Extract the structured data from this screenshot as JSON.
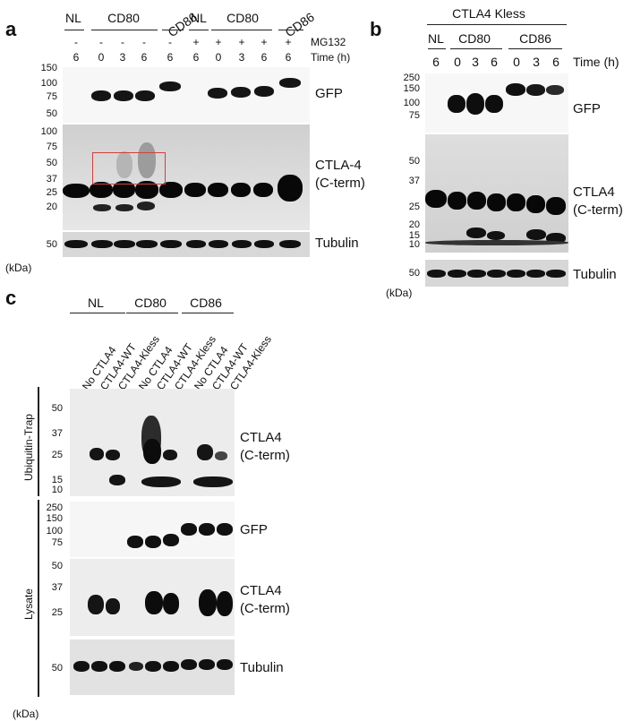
{
  "panel_a": {
    "letter": "a",
    "groups": [
      "NL",
      "CD80",
      "CD86",
      "NL",
      "CD80",
      "CD86"
    ],
    "mg132_row": [
      "-",
      "-",
      "-",
      "-",
      "-",
      "+",
      "+",
      "+",
      "+",
      "+"
    ],
    "mg132_label": "MG132",
    "time_row": [
      "6",
      "0",
      "3",
      "6",
      "6",
      "6",
      "0",
      "3",
      "6",
      "6"
    ],
    "time_label": "Time (h)",
    "gfp_markers": [
      "150",
      "100",
      "75",
      "50"
    ],
    "ctla_markers": [
      "100",
      "75",
      "50",
      "37",
      "25",
      "20"
    ],
    "tub_markers": [
      "50"
    ],
    "blot_labels": {
      "gfp": "GFP",
      "ctla_line1": "CTLA-4",
      "ctla_line2": "(C-term)",
      "tubulin": "Tubulin"
    },
    "kda": "(kDa)"
  },
  "panel_b": {
    "letter": "b",
    "title": "CTLA4 Kless",
    "groups": [
      "NL",
      "CD80",
      "CD86"
    ],
    "time_row": [
      "6",
      "0",
      "3",
      "6",
      "0",
      "3",
      "6"
    ],
    "time_label": "Time (h)",
    "gfp_markers": [
      "250",
      "150",
      "100",
      "75"
    ],
    "ctla_markers": [
      "50",
      "37",
      "25",
      "20",
      "15",
      "10"
    ],
    "tub_markers": [
      "50"
    ],
    "blot_labels": {
      "gfp": "GFP",
      "ctla_line1": "CTLA4",
      "ctla_line2": "(C-term)",
      "tubulin": "Tubulin"
    },
    "kda": "(kDa)"
  },
  "panel_c": {
    "letter": "c",
    "groups": [
      "NL",
      "CD80",
      "CD86"
    ],
    "lanes": [
      "No CTLA4",
      "CTLA4-WT",
      "CTLA4-Kless",
      "No CTLA4",
      "CTLA4-WT",
      "CTLA4-Kless",
      "No CTLA4",
      "CTLA4-WT",
      "CTLA4-Kless"
    ],
    "section_labels": {
      "ubiquitin": "Ubiquitin-Trap",
      "lysate": "Lysate"
    },
    "ub_markers": [
      "50",
      "37",
      "25",
      "15",
      "10"
    ],
    "gfp_markers": [
      "250",
      "150",
      "100",
      "75"
    ],
    "ctla_markers": [
      "50",
      "37",
      "25"
    ],
    "tub_markers": [
      "50"
    ],
    "blot_labels": {
      "ub_line1": "CTLA4",
      "ub_line2": "(C-term)",
      "gfp": "GFP",
      "ctla_line1": "CTLA4",
      "ctla_line2": "(C-term)",
      "tubulin": "Tubulin"
    },
    "kda": "(kDa)"
  }
}
